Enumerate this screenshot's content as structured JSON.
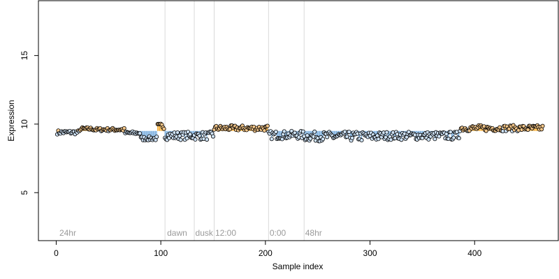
{
  "chart_data": {
    "type": "scatter",
    "xlabel": "Sample index",
    "ylabel": "Expression",
    "xlim": [
      -17,
      480
    ],
    "ylim": [
      1.5,
      19
    ],
    "baseline": 9.5,
    "x_ticks": [
      0,
      100,
      200,
      300,
      400
    ],
    "y_ticks": [
      5,
      10,
      15
    ],
    "separators": [
      104,
      132,
      151,
      203,
      237
    ],
    "annotations": [
      {
        "text": "24hr",
        "x": 3
      },
      {
        "text": "dawn",
        "x": 106
      },
      {
        "text": "dusk",
        "x": 133
      },
      {
        "text": "12:00",
        "x": 152
      },
      {
        "text": "0:00",
        "x": 204
      },
      {
        "text": "48hr",
        "x": 238
      }
    ],
    "segments": [
      {
        "start": 1,
        "end": 22,
        "base": 9.4,
        "amp": 0.15
      },
      {
        "start": 23,
        "end": 35,
        "base": 9.65,
        "amp": 0.12
      },
      {
        "start": 36,
        "end": 65,
        "base": 9.6,
        "amp": 0.12
      },
      {
        "start": 66,
        "end": 80,
        "base": 9.35,
        "amp": 0.12
      },
      {
        "start": 81,
        "end": 96,
        "base": 8.95,
        "amp": 0.15
      },
      {
        "start": 97,
        "end": 103,
        "base": 9.85,
        "amp": 0.2
      },
      {
        "start": 104,
        "end": 150,
        "base": 9.15,
        "amp": 0.3
      },
      {
        "start": 151,
        "end": 202,
        "base": 9.7,
        "amp": 0.2
      },
      {
        "start": 203,
        "end": 236,
        "base": 9.2,
        "amp": 0.3
      },
      {
        "start": 237,
        "end": 310,
        "base": 9.1,
        "amp": 0.35
      },
      {
        "start": 311,
        "end": 385,
        "base": 9.15,
        "amp": 0.3
      },
      {
        "start": 386,
        "end": 465,
        "base": 9.7,
        "amp": 0.22
      }
    ],
    "colors": {
      "above": "#f5a623",
      "below": "#6fa8dc",
      "point_fill_low": "#cfe3f7",
      "point_fill_high": "#f5c78a",
      "separator": "#d9d9d9",
      "annotation": "#9a9a9a"
    }
  }
}
